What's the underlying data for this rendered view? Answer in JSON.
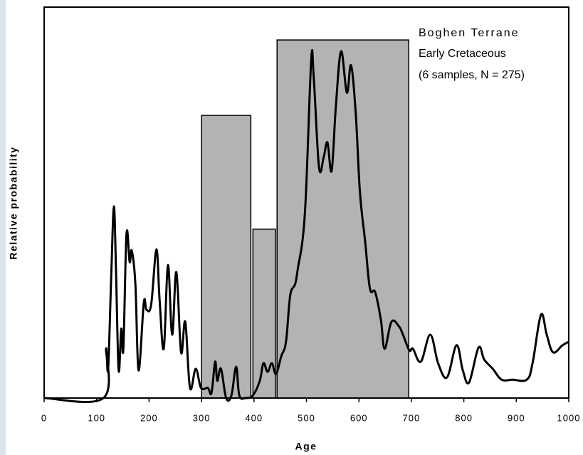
{
  "chart_data": {
    "type": "line",
    "xlabel": "Age",
    "ylabel": "Relative probability",
    "annotations": [
      "Boghen Terrane",
      "Early Cretaceous",
      "(6 samples, N = 275)"
    ],
    "xlim": [
      0,
      1000
    ],
    "xticks": [
      0,
      100,
      200,
      300,
      400,
      500,
      600,
      700,
      800,
      900,
      1000
    ],
    "ylim": [
      0,
      100
    ],
    "bar_color": "#b3b3b3",
    "bars": [
      {
        "start": 300,
        "end": 394,
        "value": 72.3
      },
      {
        "start": 398,
        "end": 441,
        "value": 43.2
      },
      {
        "start": 444,
        "end": 695,
        "value": 91.6
      }
    ],
    "line_color": "#000000",
    "x": [
      0,
      113,
      118,
      122,
      128,
      133,
      137,
      142,
      147,
      151,
      157,
      163,
      167,
      174,
      180,
      190,
      195,
      204,
      214,
      220,
      228,
      236,
      244,
      252,
      261,
      269,
      278,
      289,
      299,
      312,
      319,
      326,
      330,
      337,
      347,
      357,
      366,
      372,
      384,
      398,
      411,
      418,
      426,
      434,
      442,
      452,
      461,
      469,
      478,
      483,
      497,
      509,
      514,
      524,
      533,
      540,
      548,
      556,
      566,
      577,
      585,
      594,
      602,
      612,
      621,
      631,
      642,
      649,
      662,
      676,
      684,
      696,
      703,
      718,
      736,
      751,
      768,
      786,
      798,
      810,
      828,
      839,
      855,
      872,
      893,
      920,
      931,
      947,
      958,
      970,
      988,
      1000
    ],
    "values": [
      0,
      0,
      12.6,
      7.5,
      31.7,
      49,
      32.6,
      7.1,
      17.7,
      12.6,
      42,
      34.8,
      37.7,
      29,
      7.1,
      24.4,
      22.6,
      23.9,
      38,
      25.3,
      12.6,
      34,
      16.2,
      32.2,
      11.7,
      19.5,
      2.6,
      7.5,
      2.6,
      2.6,
      1.3,
      9.3,
      4.4,
      7.5,
      0,
      0.7,
      8,
      0.7,
      0,
      0.7,
      4.4,
      8.9,
      6.7,
      8.9,
      6.2,
      10.7,
      14.4,
      26.2,
      29,
      32.6,
      47.2,
      86.3,
      81.8,
      59,
      61.7,
      65.4,
      58.1,
      74.5,
      88.7,
      78.1,
      85.1,
      72.7,
      52.6,
      39.9,
      28,
      27.1,
      19.9,
      12.6,
      19.5,
      18.4,
      16.2,
      12.2,
      12.6,
      9.3,
      16.2,
      8.9,
      5.3,
      13.5,
      7.1,
      4,
      12.9,
      9.8,
      7.5,
      4.7,
      4.7,
      4.7,
      8.9,
      21.3,
      16.2,
      11.7,
      13.5,
      14.4
    ]
  }
}
